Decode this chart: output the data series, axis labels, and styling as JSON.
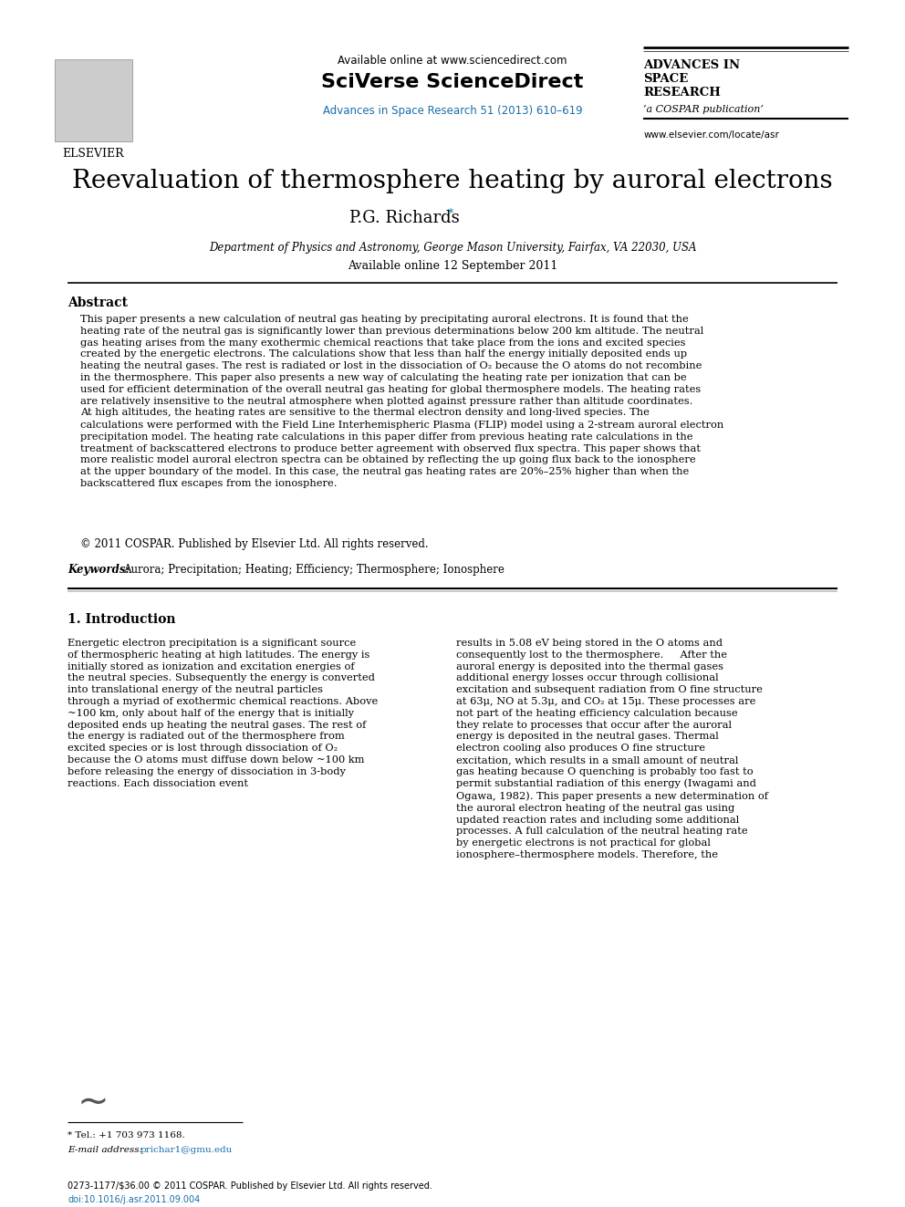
{
  "bg_color": "#ffffff",
  "header": {
    "available_online": "Available online at www.sciencedirect.com",
    "sciverse": "SciVerse ScienceDirect",
    "journal_ref": "Advances in Space Research 51 (2013) 610–619",
    "journal_name_line1": "ADVANCES IN",
    "journal_name_line2": "SPACE",
    "journal_name_line3": "RESEARCH",
    "journal_sub": "’a COSPAR publication’",
    "journal_url": "www.elsevier.com/locate/asr",
    "elsevier_text": "ELSEVIER"
  },
  "title": "Reevaluation of thermosphere heating by auroral electrons",
  "author": "P.G. Richards",
  "author_star": "*",
  "affiliation": "Department of Physics and Astronomy, George Mason University, Fairfax, VA 22030, USA",
  "available_date": "Available online 12 September 2011",
  "abstract_title": "Abstract",
  "abstract_text": "This paper presents a new calculation of neutral gas heating by precipitating auroral electrons. It is found that the heating rate of the neutral gas is significantly lower than previous determinations below 200 km altitude. The neutral gas heating arises from the many exothermic chemical reactions that take place from the ions and excited species created by the energetic electrons. The calculations show that less than half the energy initially deposited ends up heating the neutral gases. The rest is radiated or lost in the dissociation of O₂ because the O atoms do not recombine in the thermosphere. This paper also presents a new way of calculating the heating rate per ionization that can be used for efficient determination of the overall neutral gas heating for global thermosphere models. The heating rates are relatively insensitive to the neutral atmosphere when plotted against pressure rather than altitude coordinates. At high altitudes, the heating rates are sensitive to the thermal electron density and long-lived species. The calculations were performed with the Field Line Interhemispheric Plasma (FLIP) model using a 2-stream auroral electron precipitation model. The heating rate calculations in this paper differ from previous heating rate calculations in the treatment of backscattered electrons to produce better agreement with observed flux spectra. This paper shows that more realistic model auroral electron spectra can be obtained by reflecting the up going flux back to the ionosphere at the upper boundary of the model. In this case, the neutral gas heating rates are 20%–25% higher than when the backscattered flux escapes from the ionosphere.",
  "copyright": "© 2011 COSPAR. Published by Elsevier Ltd. All rights reserved.",
  "keywords_label": "Keywords:",
  "keywords": "Aurora; Precipitation; Heating; Efficiency; Thermosphere; Ionosphere",
  "section1_title": "1. Introduction",
  "section1_col1": "Energetic electron precipitation is a significant source of thermospheric heating at high latitudes. The energy is initially stored as ionization and excitation energies of the neutral species. Subsequently the energy is converted into translational energy of the neutral particles through a myriad of exothermic chemical reactions. Above ~100 km, only about half of the energy that is initially deposited ends up heating the neutral gases. The rest of the energy is radiated out of the thermosphere from excited species or is lost through dissociation of O₂ because the O atoms must diffuse down below ~100 km before releasing the energy of dissociation in 3-body reactions. Each dissociation event",
  "section1_col2": "results in 5.08 eV being stored in the O atoms and consequently lost to the thermosphere.\n    After the auroral energy is deposited into the thermal gases additional energy losses occur through collisional excitation and subsequent radiation from O fine structure at 63μ, NO at 5.3μ, and CO₂ at 15μ. These processes are not part of the heating efficiency calculation because they relate to processes that occur after the auroral energy is deposited in the neutral gases. Thermal electron cooling also produces O fine structure excitation, which results in a small amount of neutral gas heating because O quenching is probably too fast to permit substantial radiation of this energy (Iwagami and Ogawa, 1982). This paper presents a new determination of the auroral electron heating of the neutral gas using updated reaction rates and including some additional processes. A full calculation of the neutral heating rate by energetic electrons is not practical for global ionosphere–thermosphere models. Therefore, the",
  "footnote_star": "* Tel.: +1 703 973 1168.",
  "footnote_email_label": "E-mail address:",
  "footnote_email": "prichar1@gmu.edu",
  "footer_issn": "0273-1177/$36.00 © 2011 COSPAR. Published by Elsevier Ltd. All rights reserved.",
  "footer_doi": "doi:10.1016/j.asr.2011.09.004",
  "link_color": "#1a6ea8",
  "text_color": "#000000"
}
